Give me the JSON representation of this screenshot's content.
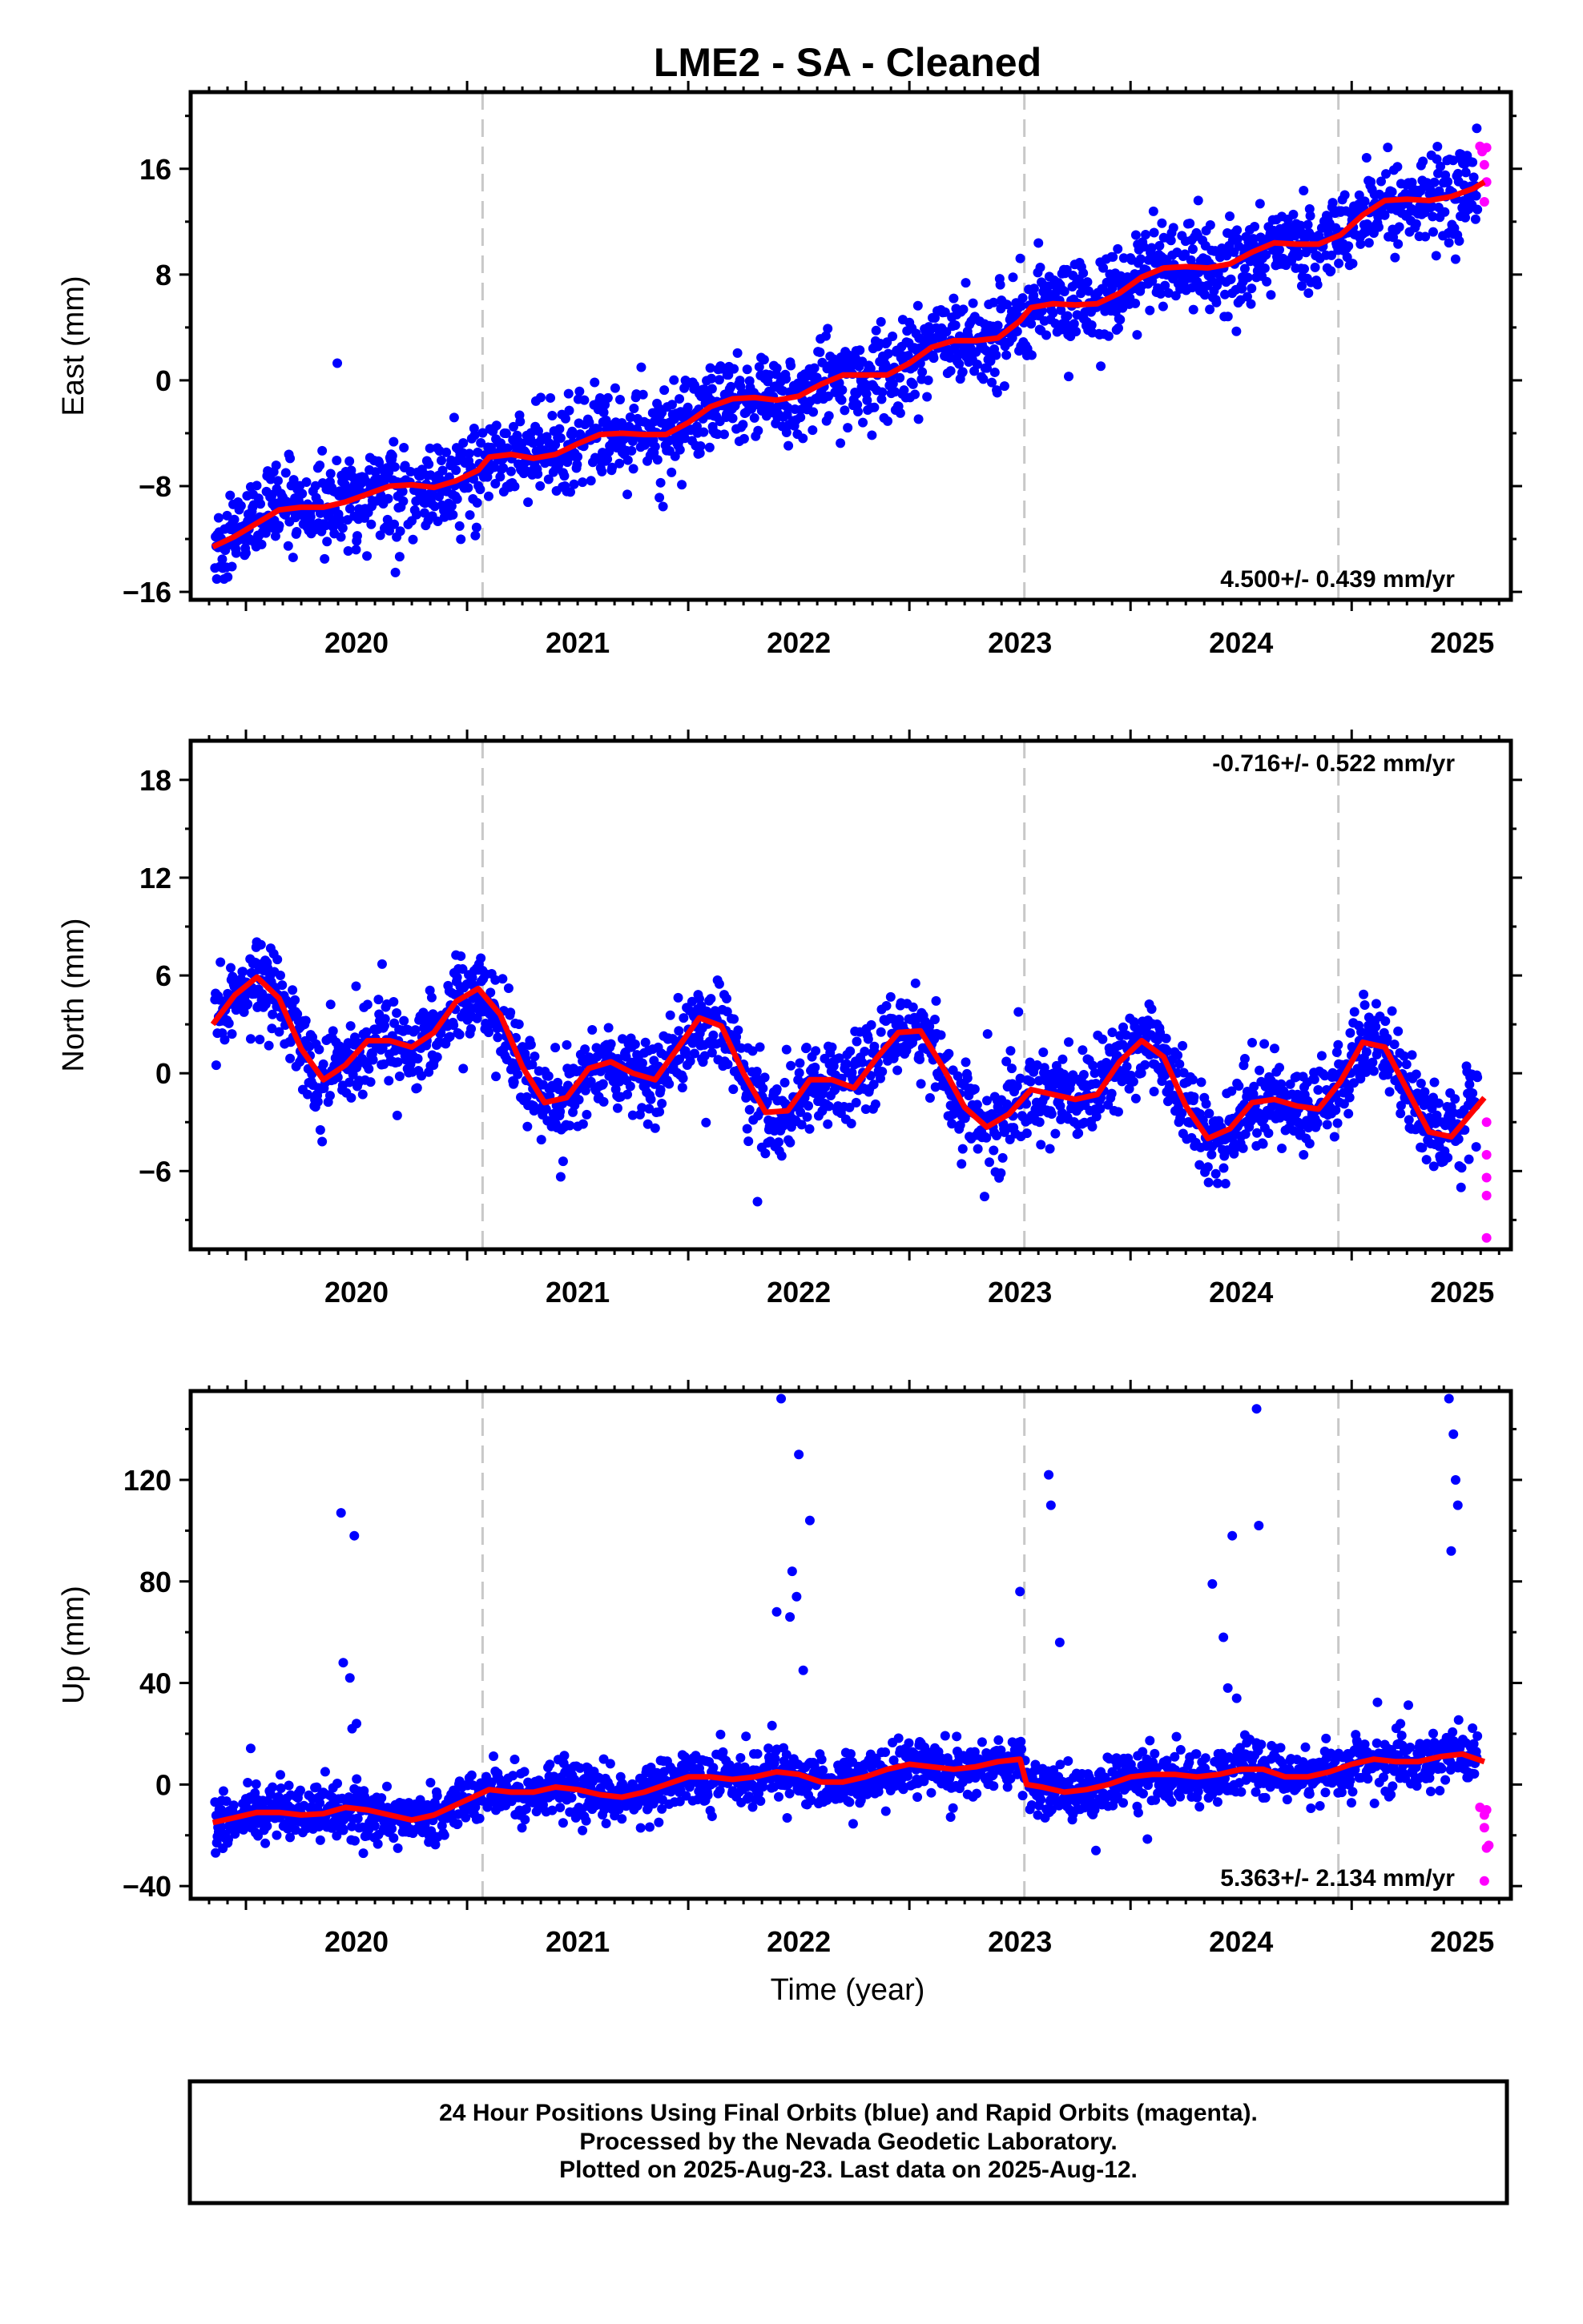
{
  "title": "LME2  - SA - Cleaned",
  "footer": {
    "line1": "24 Hour Positions Using Final Orbits (blue) and Rapid Orbits (magenta).",
    "line2": "Processed by the Nevada Geodetic Laboratory.",
    "line3": "Plotted on 2025-Aug-23. Last data on 2025-Aug-12."
  },
  "colors": {
    "final": "#0000ff",
    "rapid": "#ff00ff",
    "model": "#ff0000",
    "steps": "#c8c8c8",
    "frame": "#000000"
  },
  "chart_data": [
    {
      "type": "scatter",
      "component": "east",
      "ylabel": "East (mm)",
      "xlabel": "",
      "xlim": [
        2019.75,
        2025.72
      ],
      "ylim": [
        -16.6,
        21.8
      ],
      "xticks": [
        2020,
        2021,
        2022,
        2023,
        2024,
        2025
      ],
      "yticks": [
        -16,
        -8,
        0,
        8,
        16
      ],
      "rate_text": "4.500+/- 0.439 mm/yr",
      "rate_position": "bottom-right",
      "step_epochs": [
        2021.07,
        2023.52,
        2024.94
      ],
      "grid": false,
      "model_fit": {
        "x": [
          2019.85,
          2019.95,
          2020.05,
          2020.15,
          2020.25,
          2020.35,
          2020.45,
          2020.55,
          2020.65,
          2020.75,
          2020.85,
          2020.95,
          2021.05,
          2021.1,
          2021.2,
          2021.3,
          2021.4,
          2021.5,
          2021.6,
          2021.7,
          2021.8,
          2021.9,
          2022.0,
          2022.1,
          2022.2,
          2022.3,
          2022.4,
          2022.5,
          2022.6,
          2022.7,
          2022.8,
          2022.9,
          2023.0,
          2023.1,
          2023.2,
          2023.3,
          2023.4,
          2023.5,
          2023.55,
          2023.65,
          2023.75,
          2023.85,
          2023.95,
          2024.05,
          2024.15,
          2024.25,
          2024.35,
          2024.45,
          2024.55,
          2024.65,
          2024.75,
          2024.85,
          2024.95,
          2025.05,
          2025.15,
          2025.25,
          2025.35,
          2025.45,
          2025.55,
          2025.6
        ],
        "y": [
          -12.6,
          -11.8,
          -10.8,
          -9.8,
          -9.6,
          -9.6,
          -9.2,
          -8.6,
          -8.0,
          -7.9,
          -8.1,
          -7.6,
          -6.8,
          -5.8,
          -5.6,
          -5.9,
          -5.6,
          -4.8,
          -4.1,
          -4.0,
          -4.1,
          -4.1,
          -3.2,
          -2.0,
          -1.4,
          -1.3,
          -1.5,
          -1.2,
          -0.3,
          0.4,
          0.4,
          0.4,
          1.3,
          2.5,
          3.0,
          3.0,
          3.2,
          4.5,
          5.5,
          5.8,
          5.7,
          5.8,
          6.6,
          7.8,
          8.5,
          8.6,
          8.5,
          8.8,
          9.7,
          10.4,
          10.3,
          10.3,
          11.0,
          12.5,
          13.6,
          13.7,
          13.6,
          13.9,
          14.5,
          15.0
        ]
      },
      "rapid_points": {
        "x": [
          2025.58,
          2025.59,
          2025.6,
          2025.61,
          2025.6,
          2025.61
        ],
        "y": [
          17.7,
          17.3,
          16.3,
          15.0,
          13.5,
          17.6
        ]
      }
    },
    {
      "type": "scatter",
      "component": "north",
      "ylabel": "North (mm)",
      "xlabel": "",
      "xlim": [
        2019.75,
        2025.72
      ],
      "ylim": [
        -10.8,
        20.4
      ],
      "xticks": [
        2020,
        2021,
        2022,
        2023,
        2024,
        2025
      ],
      "yticks": [
        -6,
        0,
        6,
        12,
        18
      ],
      "rate_text": "-0.716+/- 0.522 mm/yr",
      "rate_position": "top-right",
      "step_epochs": [
        2021.07,
        2023.52,
        2024.94
      ],
      "grid": false,
      "model_fit": {
        "x": [
          2019.85,
          2019.95,
          2020.05,
          2020.15,
          2020.25,
          2020.35,
          2020.45,
          2020.55,
          2020.65,
          2020.75,
          2020.85,
          2020.95,
          2021.05,
          2021.15,
          2021.25,
          2021.35,
          2021.45,
          2021.55,
          2021.65,
          2021.75,
          2021.85,
          2021.95,
          2022.05,
          2022.15,
          2022.25,
          2022.35,
          2022.45,
          2022.55,
          2022.65,
          2022.75,
          2022.85,
          2022.95,
          2023.05,
          2023.15,
          2023.25,
          2023.35,
          2023.45,
          2023.55,
          2023.65,
          2023.75,
          2023.85,
          2023.95,
          2024.05,
          2024.15,
          2024.25,
          2024.35,
          2024.45,
          2024.55,
          2024.65,
          2024.75,
          2024.85,
          2024.95,
          2025.05,
          2025.15,
          2025.25,
          2025.35,
          2025.45,
          2025.55,
          2025.6
        ],
        "y": [
          3.0,
          4.8,
          5.9,
          4.6,
          1.5,
          -0.4,
          0.5,
          2.0,
          2.0,
          1.6,
          2.5,
          4.4,
          5.2,
          3.6,
          0.4,
          -1.8,
          -1.5,
          0.3,
          0.7,
          0.0,
          -0.4,
          1.5,
          3.4,
          2.9,
          0.0,
          -2.4,
          -2.3,
          -0.4,
          -0.4,
          -0.9,
          0.9,
          2.5,
          2.6,
          0.4,
          -2.1,
          -3.3,
          -2.5,
          -1.0,
          -1.3,
          -1.6,
          -1.3,
          0.7,
          2.0,
          1.0,
          -2.0,
          -4.0,
          -3.4,
          -1.8,
          -1.6,
          -2.0,
          -2.2,
          -0.5,
          1.9,
          1.6,
          -1.0,
          -3.6,
          -3.9,
          -2.3,
          -1.5
        ]
      },
      "rapid_points": {
        "x": [
          2025.61,
          2025.61,
          2025.61,
          2025.61,
          2025.61
        ],
        "y": [
          -3.0,
          -5.0,
          -6.4,
          -7.5,
          -10.1
        ]
      }
    },
    {
      "type": "scatter",
      "component": "up",
      "ylabel": "Up (mm)",
      "xlabel": "Time (year)",
      "xlim": [
        2019.75,
        2025.72
      ],
      "ylim": [
        -45,
        155
      ],
      "xticks": [
        2020,
        2021,
        2022,
        2023,
        2024,
        2025
      ],
      "yticks": [
        -40,
        0,
        40,
        80,
        120
      ],
      "rate_text": "5.363+/- 2.134 mm/yr",
      "rate_position": "bottom-right",
      "step_epochs": [
        2021.07,
        2023.52,
        2024.94
      ],
      "grid": false,
      "model_fit": {
        "x": [
          2019.85,
          2019.95,
          2020.05,
          2020.15,
          2020.25,
          2020.35,
          2020.45,
          2020.55,
          2020.65,
          2020.75,
          2020.85,
          2020.95,
          2021.05,
          2021.1,
          2021.2,
          2021.3,
          2021.4,
          2021.5,
          2021.6,
          2021.7,
          2021.8,
          2021.9,
          2022.0,
          2022.1,
          2022.2,
          2022.3,
          2022.4,
          2022.5,
          2022.6,
          2022.7,
          2022.8,
          2022.9,
          2023.0,
          2023.1,
          2023.2,
          2023.3,
          2023.4,
          2023.5,
          2023.53,
          2023.6,
          2023.7,
          2023.8,
          2023.9,
          2024.0,
          2024.1,
          2024.2,
          2024.3,
          2024.4,
          2024.5,
          2024.6,
          2024.7,
          2024.8,
          2024.9,
          2025.0,
          2025.1,
          2025.2,
          2025.3,
          2025.4,
          2025.5,
          2025.6
        ],
        "y": [
          -15,
          -13,
          -11,
          -11,
          -12,
          -11.5,
          -9,
          -10,
          -12,
          -14,
          -12,
          -8,
          -4,
          -2,
          -3,
          -3,
          -1,
          -2,
          -4,
          -5,
          -3,
          0,
          3,
          3,
          2,
          3,
          5,
          4,
          1,
          1,
          3,
          6,
          8,
          7,
          6,
          7,
          9,
          10,
          0,
          -1,
          -3,
          -2,
          0,
          3,
          4,
          4,
          3,
          4,
          6,
          6,
          3,
          3,
          5,
          8,
          10,
          9,
          9,
          11,
          12,
          9
        ]
      },
      "outliers": {
        "x": [
          2020.43,
          2020.44,
          2020.47,
          2020.49,
          2020.5,
          2020.48,
          2022.4,
          2022.42,
          2022.47,
          2022.49,
          2022.5,
          2022.52,
          2022.55,
          2022.46,
          2023.5,
          2023.63,
          2023.64,
          2023.68,
          2024.37,
          2024.42,
          2024.44,
          2024.46,
          2024.48,
          2024.57,
          2024.58,
          2025.44,
          2025.46,
          2025.47,
          2025.48,
          2025.45
        ],
        "y": [
          107,
          48,
          42,
          98,
          24,
          22,
          68,
          152,
          84,
          74,
          130,
          45,
          104,
          66,
          76,
          122,
          110,
          56,
          79,
          58,
          38,
          98,
          34,
          148,
          102,
          152,
          138,
          120,
          110,
          92
        ]
      },
      "rapid_points": {
        "x": [
          2025.58,
          2025.6,
          2025.61,
          2025.62,
          2025.61,
          2025.6,
          2025.6
        ],
        "y": [
          -9,
          -12,
          -10,
          -24,
          -25,
          -17,
          -38
        ]
      }
    }
  ]
}
